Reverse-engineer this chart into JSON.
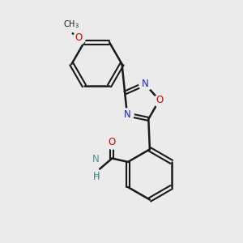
{
  "background_color": "#ebebeb",
  "bond_color": "#1a1a1a",
  "nitrogen_color": "#2020cc",
  "oxygen_color": "#cc0000",
  "amide_n_color": "#4a9090",
  "figsize": [
    3.0,
    3.0
  ],
  "dpi": 100,
  "xlim": [
    -1.3,
    1.3
  ],
  "ylim": [
    -1.35,
    1.35
  ]
}
